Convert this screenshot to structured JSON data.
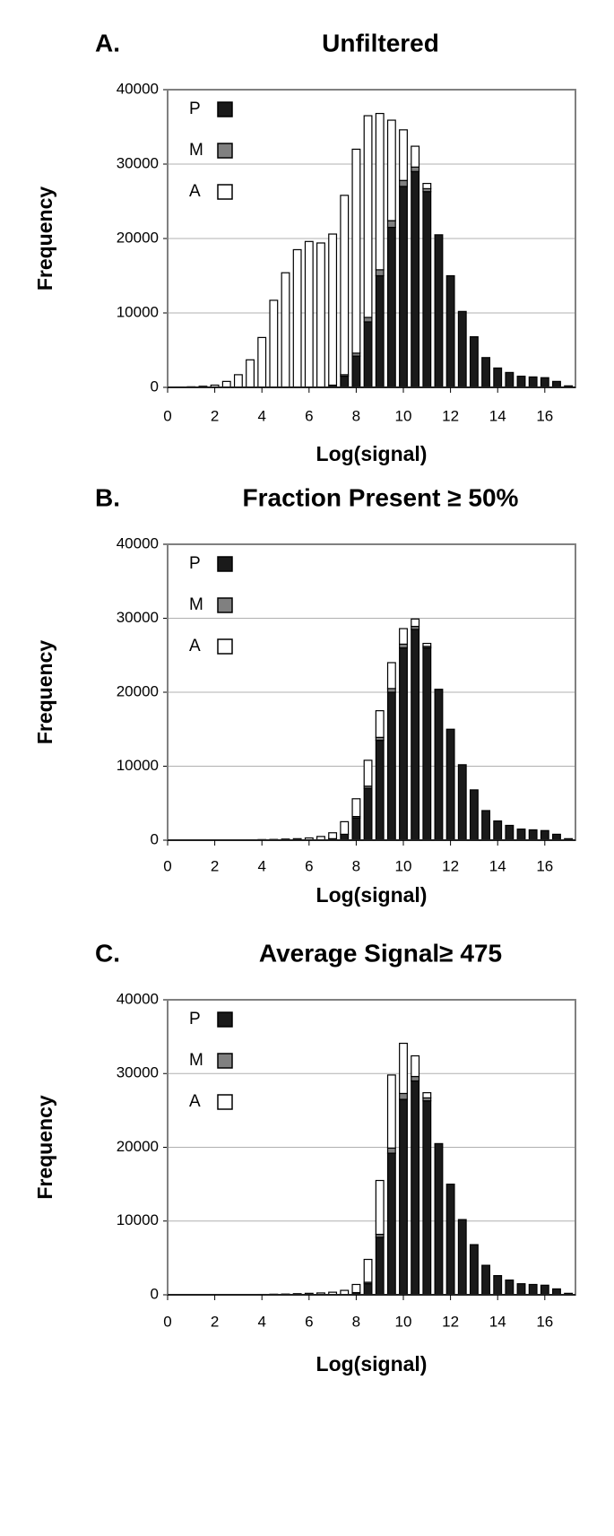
{
  "chart_data": [
    {
      "type": "bar",
      "stacked": true,
      "panel_label": "A.",
      "title": "Unfiltered",
      "x_label": "Log(signal)",
      "y_label": "Frequency",
      "x": [
        0.5,
        1,
        1.5,
        2,
        2.5,
        3,
        3.5,
        4,
        4.5,
        5,
        5.5,
        6,
        6.5,
        7,
        7.5,
        8,
        8.5,
        9,
        9.5,
        10,
        10.5,
        11,
        11.5,
        12,
        12.5,
        13,
        13.5,
        14,
        14.5,
        15,
        15.5,
        16,
        16.5,
        17
      ],
      "series": [
        {
          "name": "P",
          "color": "#1a1a1a",
          "values": [
            0,
            0,
            0,
            0,
            0,
            0,
            0,
            0,
            0,
            0,
            0,
            0,
            0,
            300,
            1500,
            4200,
            8800,
            15000,
            21500,
            27000,
            29000,
            26300,
            20500,
            15000,
            10200,
            6800,
            4000,
            2600,
            2000,
            1500,
            1400,
            1300,
            800,
            200
          ]
        },
        {
          "name": "M",
          "color": "#808080",
          "values": [
            0,
            0,
            0,
            0,
            0,
            0,
            0,
            0,
            0,
            0,
            0,
            0,
            0,
            0,
            200,
            400,
            600,
            800,
            900,
            800,
            600,
            400,
            0,
            0,
            0,
            0,
            0,
            0,
            0,
            0,
            0,
            0,
            0,
            0
          ]
        },
        {
          "name": "A",
          "color": "#ffffff",
          "values": [
            50,
            80,
            150,
            300,
            800,
            1700,
            3700,
            6700,
            11700,
            15400,
            18500,
            19600,
            19400,
            20300,
            24100,
            27400,
            27100,
            21000,
            13500,
            6800,
            2800,
            700,
            0,
            0,
            0,
            0,
            0,
            0,
            0,
            0,
            0,
            0,
            0,
            0
          ]
        }
      ],
      "xlim": [
        0,
        17.3
      ],
      "xticks": [
        0,
        2,
        4,
        6,
        8,
        10,
        12,
        14,
        16
      ],
      "ylim": [
        0,
        40000
      ],
      "yticks": [
        0,
        10000,
        20000,
        30000,
        40000
      ],
      "grid": true,
      "legend": "upper left"
    },
    {
      "type": "bar",
      "stacked": true,
      "panel_label": "B.",
      "title": "Fraction Present ≥ 50%",
      "x_label": "Log(signal)",
      "y_label": "Frequency",
      "x": [
        0.5,
        1,
        1.5,
        2,
        2.5,
        3,
        3.5,
        4,
        4.5,
        5,
        5.5,
        6,
        6.5,
        7,
        7.5,
        8,
        8.5,
        9,
        9.5,
        10,
        10.5,
        11,
        11.5,
        12,
        12.5,
        13,
        13.5,
        14,
        14.5,
        15,
        15.5,
        16,
        16.5,
        17
      ],
      "series": [
        {
          "name": "P",
          "color": "#1a1a1a",
          "values": [
            0,
            0,
            0,
            0,
            0,
            0,
            0,
            0,
            0,
            0,
            0,
            0,
            0,
            200,
            800,
            3000,
            7000,
            13500,
            20000,
            26000,
            28500,
            26000,
            20400,
            15000,
            10200,
            6800,
            4000,
            2600,
            2000,
            1500,
            1400,
            1300,
            800,
            200
          ]
        },
        {
          "name": "M",
          "color": "#808080",
          "values": [
            0,
            0,
            0,
            0,
            0,
            0,
            0,
            0,
            0,
            0,
            0,
            0,
            0,
            0,
            0,
            200,
            300,
            400,
            500,
            500,
            400,
            200,
            0,
            0,
            0,
            0,
            0,
            0,
            0,
            0,
            0,
            0,
            0,
            0
          ]
        },
        {
          "name": "A",
          "color": "#ffffff",
          "values": [
            0,
            0,
            0,
            0,
            0,
            0,
            50,
            80,
            100,
            150,
            200,
            300,
            500,
            800,
            1700,
            2400,
            3500,
            3600,
            3500,
            2100,
            1000,
            400,
            0,
            0,
            0,
            0,
            0,
            0,
            0,
            0,
            0,
            0,
            0,
            0
          ]
        }
      ],
      "xlim": [
        0,
        17.3
      ],
      "xticks": [
        0,
        2,
        4,
        6,
        8,
        10,
        12,
        14,
        16
      ],
      "ylim": [
        0,
        40000
      ],
      "yticks": [
        0,
        10000,
        20000,
        30000,
        40000
      ],
      "grid": true,
      "legend": "upper left"
    },
    {
      "type": "bar",
      "stacked": true,
      "panel_label": "C.",
      "title": "Average Signal≥ 475",
      "x_label": "Log(signal)",
      "y_label": "Frequency",
      "x": [
        0.5,
        1,
        1.5,
        2,
        2.5,
        3,
        3.5,
        4,
        4.5,
        5,
        5.5,
        6,
        6.5,
        7,
        7.5,
        8,
        8.5,
        9,
        9.5,
        10,
        10.5,
        11,
        11.5,
        12,
        12.5,
        13,
        13.5,
        14,
        14.5,
        15,
        15.5,
        16,
        16.5,
        17
      ],
      "series": [
        {
          "name": "P",
          "color": "#1a1a1a",
          "values": [
            0,
            0,
            0,
            0,
            0,
            0,
            0,
            0,
            0,
            0,
            0,
            0,
            0,
            0,
            0,
            300,
            1500,
            7800,
            19200,
            26500,
            29000,
            26300,
            20500,
            15000,
            10200,
            6800,
            4000,
            2600,
            2000,
            1500,
            1400,
            1300,
            800,
            200
          ]
        },
        {
          "name": "M",
          "color": "#808080",
          "values": [
            0,
            0,
            0,
            0,
            0,
            0,
            0,
            0,
            0,
            0,
            0,
            0,
            0,
            0,
            0,
            0,
            200,
            400,
            700,
            800,
            600,
            400,
            0,
            0,
            0,
            0,
            0,
            0,
            0,
            0,
            0,
            0,
            0,
            0
          ]
        },
        {
          "name": "A",
          "color": "#ffffff",
          "values": [
            0,
            0,
            0,
            0,
            0,
            0,
            0,
            50,
            80,
            100,
            150,
            200,
            250,
            350,
            600,
            1100,
            3100,
            7300,
            9900,
            6800,
            2800,
            700,
            0,
            0,
            0,
            0,
            0,
            0,
            0,
            0,
            0,
            0,
            0,
            0
          ]
        }
      ],
      "xlim": [
        0,
        17.3
      ],
      "xticks": [
        0,
        2,
        4,
        6,
        8,
        10,
        12,
        14,
        16
      ],
      "ylim": [
        0,
        40000
      ],
      "yticks": [
        0,
        10000,
        20000,
        30000,
        40000
      ],
      "grid": true,
      "legend": "upper left"
    }
  ]
}
